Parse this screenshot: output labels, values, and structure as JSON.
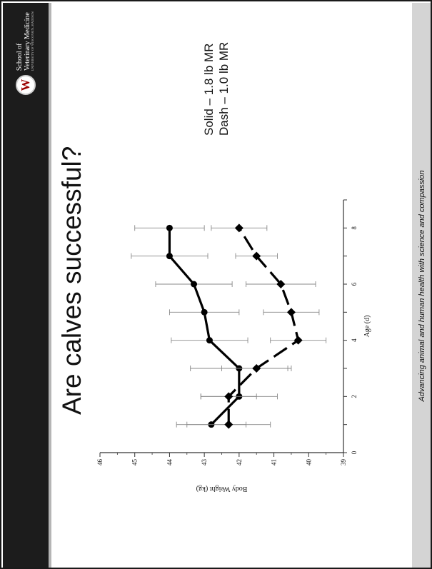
{
  "slide": {
    "title": "Are calves successful?",
    "logo": {
      "seal": "W",
      "line1": "School of",
      "line2": "Veterinary Medicine",
      "line3": "UNIVERSITY OF WISCONSIN–MADISON"
    },
    "legend": {
      "line1": "Solid – 1.8 lb MR",
      "line2": "Dash – 1.0 lb MR"
    },
    "footer": "Advancing animal and human health with science and compassion",
    "colors": {
      "header": "#1c1c1c",
      "footer": "#d4d4d4",
      "ink": "#111111"
    }
  },
  "chart_data": {
    "type": "line",
    "xlabel": "Age (d)",
    "ylabel": "Body Weight (kg)",
    "x_ticks": [
      0,
      2,
      4,
      6,
      8
    ],
    "y_ticks": [
      39,
      40,
      41,
      42,
      43,
      44,
      45,
      46
    ],
    "xlim": [
      0,
      9
    ],
    "ylim": [
      39,
      46
    ],
    "legend": "text at right: Solid and Dash descriptions",
    "series": [
      {
        "style": "solid",
        "marker": "circle",
        "x": [
          1,
          2,
          3,
          4,
          5,
          6,
          7,
          8
        ],
        "y": [
          42.8,
          42.0,
          42.0,
          42.85,
          43.0,
          43.3,
          44.0,
          44.0
        ],
        "error": [
          1.0,
          1.1,
          1.4,
          1.1,
          1.0,
          1.1,
          1.1,
          1.0
        ]
      },
      {
        "style": "dash",
        "marker": "diamond",
        "x": [
          1,
          2,
          3,
          4,
          5,
          6,
          7,
          8
        ],
        "y": [
          42.3,
          42.3,
          41.5,
          40.3,
          40.5,
          40.8,
          41.5,
          42.0
        ],
        "error": [
          1.2,
          0.8,
          1.0,
          0.8,
          0.8,
          1.0,
          0.6,
          0.8
        ]
      }
    ]
  }
}
